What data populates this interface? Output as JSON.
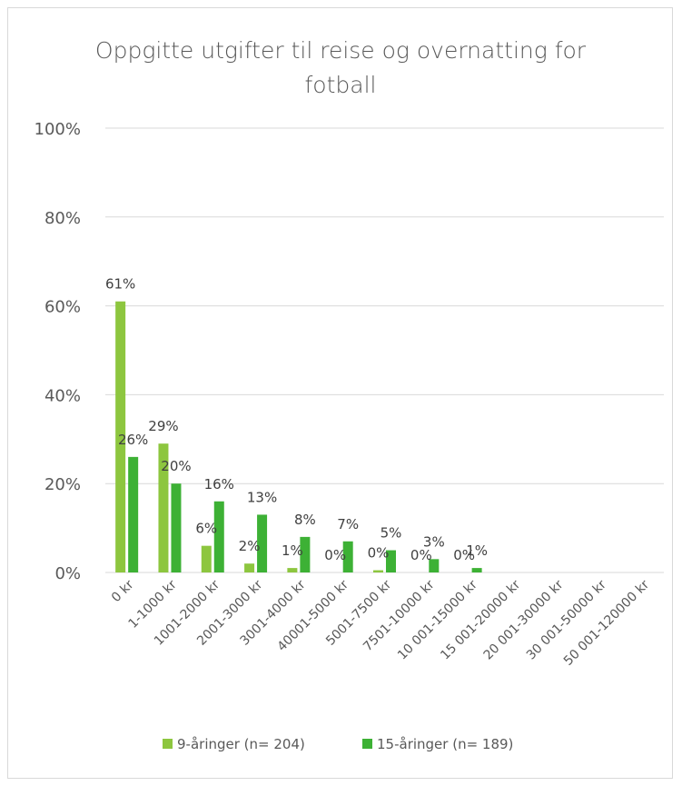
{
  "chart_data": {
    "type": "bar",
    "title": "Oppgitte utgifter til reise og overnatting for fotball",
    "title_lines": [
      "Oppgitte utgifter til reise og overnatting for",
      "fotball"
    ],
    "categories": [
      "0 kr",
      "1-1000 kr",
      "1001-2000 kr",
      "2001-3000 kr",
      "3001-4000 kr",
      "40001-5000 kr",
      "5001-7500 kr",
      "7501-10000 kr",
      "10 001-15000 kr",
      "15 001-20000 kr",
      "20 001-30000 kr",
      "30 001-50000 kr",
      "50 001-120000 kr"
    ],
    "series": [
      {
        "name": "9-åringer (n= 204)",
        "color": "#8dc63f",
        "values": [
          61,
          29,
          6,
          2,
          1,
          0,
          0.5,
          0,
          0,
          null,
          null,
          null,
          null
        ],
        "labels": [
          "61%",
          "29%",
          "6%",
          "2%",
          "1%",
          "0%",
          "0%",
          "0%",
          "0%",
          "",
          "",
          "",
          ""
        ]
      },
      {
        "name": "15-åringer (n= 189)",
        "color": "#3db135",
        "values": [
          26,
          20,
          16,
          13,
          8,
          7,
          5,
          3,
          1,
          null,
          null,
          null,
          null
        ],
        "labels": [
          "26%",
          "20%",
          "16%",
          "13%",
          "8%",
          "7%",
          "5%",
          "3%",
          "1%",
          "",
          "",
          "",
          ""
        ]
      }
    ],
    "ylim": [
      0,
      100
    ],
    "yticks": [
      "0%",
      "20%",
      "40%",
      "60%",
      "80%",
      "100%"
    ],
    "ytick_values": [
      0,
      20,
      40,
      60,
      80,
      100
    ],
    "grid": true,
    "legend_position": "bottom",
    "xlabel": "",
    "ylabel": ""
  }
}
